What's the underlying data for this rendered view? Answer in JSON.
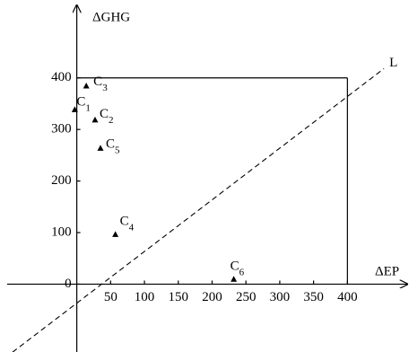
{
  "chart_data": {
    "type": "scatter",
    "x_label": "ΔEP",
    "y_label": "ΔGHG",
    "xlim": [
      -113.5,
      491
    ],
    "ylim": [
      -131.6,
      551.1
    ],
    "xticks": [
      50,
      100,
      150,
      200,
      250,
      300,
      350,
      400
    ],
    "yticks": [
      0,
      100,
      200,
      300,
      400
    ],
    "bounds": {
      "x": 400,
      "y": 400
    },
    "reference_line": {
      "name": "L",
      "x": [
        -95,
        454
      ],
      "y": [
        -132,
        418
      ]
    },
    "points": [
      {
        "label": "C",
        "subscript": "1",
        "x": -3,
        "y": 338
      },
      {
        "label": "C",
        "subscript": "2",
        "x": 27,
        "y": 318
      },
      {
        "label": "C",
        "subscript": "3",
        "x": 14,
        "y": 384
      },
      {
        "label": "C",
        "subscript": "4",
        "x": 57,
        "y": 96
      },
      {
        "label": "C",
        "subscript": "5",
        "x": 35,
        "y": 263
      },
      {
        "label": "C",
        "subscript": "6",
        "x": 232,
        "y": 9
      }
    ]
  }
}
